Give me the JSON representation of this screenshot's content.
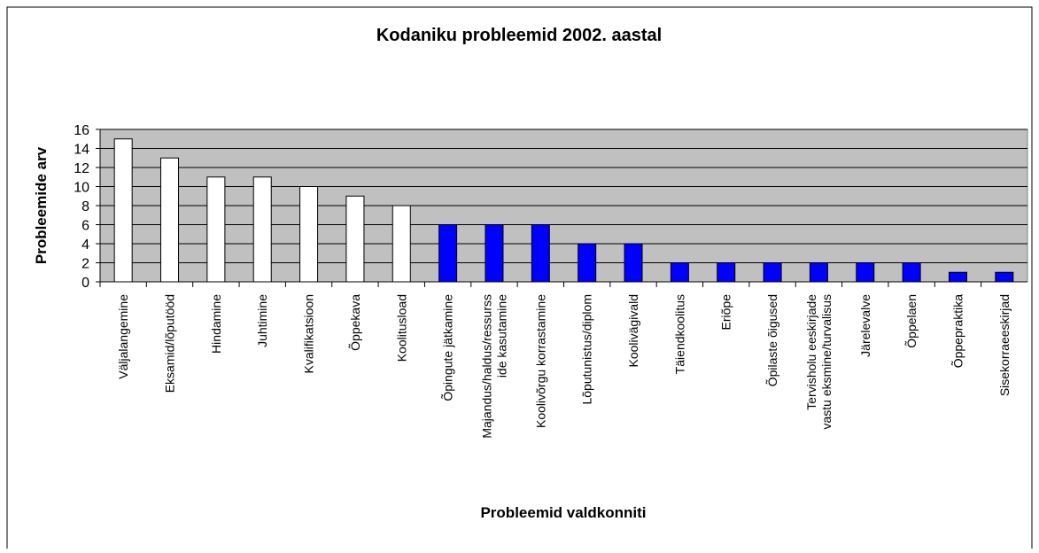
{
  "chart_data": {
    "type": "bar",
    "title": "Kodaniku probleemid 2002. aastal",
    "ylabel": "Probleemide arv",
    "xlabel": "Probleemid valdkonniti",
    "categories": [
      [
        "Väljalangemine"
      ],
      [
        "Eksamid/lõputööd"
      ],
      [
        "Hindamine"
      ],
      [
        "Juhtimine"
      ],
      [
        "Kvalifikatsioon"
      ],
      [
        "Õppekava"
      ],
      [
        "Koolitusload"
      ],
      [
        "Õpingute jätkamine"
      ],
      [
        "Majandus/haldus/ressurss",
        "ide kasutamine"
      ],
      [
        "Koolivõrgu korrastamine"
      ],
      [
        "Lõputunistus/diplom"
      ],
      [
        "Koolivägivald"
      ],
      [
        "Täiendkoolitus"
      ],
      [
        "Eriõpe"
      ],
      [
        "Õpilaste õigused"
      ],
      [
        "Tervisholu eeskirjade",
        "vastu eksmine/turvalisus"
      ],
      [
        "Järelevalve"
      ],
      [
        "Õppelaen"
      ],
      [
        "Õppepraktika"
      ],
      [
        "Sisekorraeeskirjad"
      ]
    ],
    "values": [
      15,
      13,
      11,
      11,
      10,
      9,
      8,
      6,
      6,
      6,
      4,
      4,
      2,
      2,
      2,
      2,
      2,
      2,
      1,
      1
    ],
    "colors": [
      "#ffffff",
      "#ffffff",
      "#ffffff",
      "#ffffff",
      "#ffffff",
      "#ffffff",
      "#ffffff",
      "#0000ff",
      "#0000ff",
      "#0000ff",
      "#0000ff",
      "#0000ff",
      "#0000ff",
      "#0000ff",
      "#0000ff",
      "#0000ff",
      "#0000ff",
      "#0000ff",
      "#0000ff",
      "#0000ff"
    ],
    "ylim": [
      0,
      16
    ],
    "yticks": [
      0,
      2,
      4,
      6,
      8,
      10,
      12,
      14,
      16
    ],
    "grid": true
  }
}
